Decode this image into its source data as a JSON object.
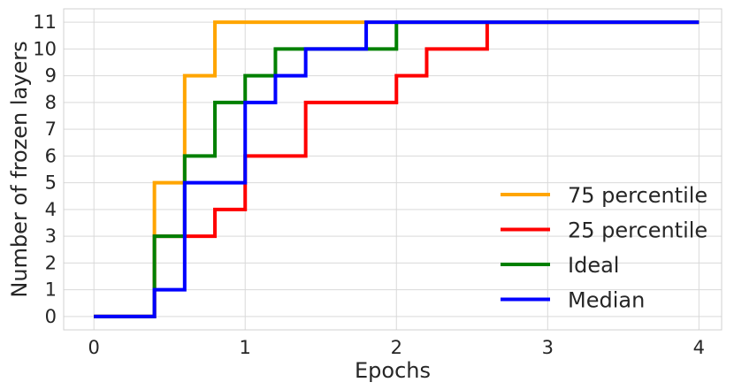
{
  "chart_data": {
    "type": "line",
    "line_style": "step-post",
    "title": "",
    "xlabel": "Epochs",
    "ylabel": "Number of frozen layers",
    "xlim": [
      -0.2,
      4.15
    ],
    "ylim": [
      -0.5,
      11.5
    ],
    "xticks": [
      "0",
      "1",
      "2",
      "3",
      "4"
    ],
    "yticks": [
      "0",
      "1",
      "2",
      "3",
      "4",
      "5",
      "6",
      "7",
      "8",
      "9",
      "10",
      "11"
    ],
    "grid": true,
    "legend_position": "lower-right",
    "series": [
      {
        "name": "75 percentile",
        "color": "#ffa500",
        "x": [
          0,
          0.4,
          0.6,
          0.8,
          1.8,
          4
        ],
        "y": [
          0,
          5,
          9,
          11,
          11,
          11
        ]
      },
      {
        "name": "25 percentile",
        "color": "#ff0000",
        "x": [
          0,
          0.4,
          0.6,
          0.8,
          1.0,
          1.4,
          2.0,
          2.2,
          2.6,
          4
        ],
        "y": [
          0,
          3,
          3,
          4,
          6,
          8,
          9,
          10,
          11,
          11
        ]
      },
      {
        "name": "Ideal",
        "color": "#008000",
        "x": [
          0,
          0.4,
          0.6,
          0.8,
          1.0,
          1.2,
          2.0,
          4
        ],
        "y": [
          0,
          3,
          6,
          8,
          9,
          10,
          11,
          11
        ]
      },
      {
        "name": "Median",
        "color": "#0000ff",
        "x": [
          0,
          0.4,
          0.6,
          1.0,
          1.2,
          1.4,
          1.8,
          4
        ],
        "y": [
          0,
          1,
          5,
          8,
          9,
          10,
          11,
          11
        ]
      }
    ]
  }
}
